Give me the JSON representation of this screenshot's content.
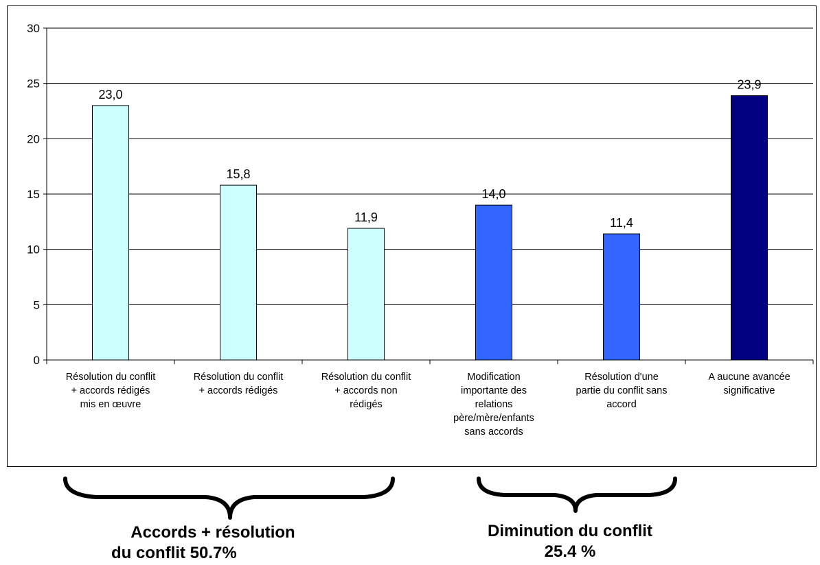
{
  "chart_data": {
    "type": "bar",
    "categories": [
      [
        "Résolution du conflit",
        "+ accords rédigés",
        "mis en œuvre"
      ],
      [
        "Résolution du conflit",
        "+ accords rédigés"
      ],
      [
        "Résolution du conflit",
        "+  accords non",
        "rédigés"
      ],
      [
        "Modification",
        "importante des",
        "relations",
        "père/mère/enfants",
        "sans accords"
      ],
      [
        "Résolution d'une",
        "partie du conflit  sans",
        "accord"
      ],
      [
        "A aucune avancée",
        "significative"
      ]
    ],
    "values": [
      23.0,
      15.8,
      11.9,
      14.0,
      11.4,
      23.9
    ],
    "value_labels": [
      "23,0",
      "15,8",
      "11,9",
      "14,0",
      "11,4",
      "23,9"
    ],
    "bar_colors": [
      "#ccffff",
      "#ccffff",
      "#ccffff",
      "#3366ff",
      "#3366ff",
      "#000080"
    ],
    "ylim": [
      0,
      30
    ],
    "yticks": [
      0,
      5,
      10,
      15,
      20,
      25,
      30
    ],
    "grid": true,
    "title": "",
    "xlabel": "",
    "ylabel": ""
  },
  "groups": [
    {
      "label_line1": "Accords + résolution",
      "label_line2": "du conflit   50.7%"
    },
    {
      "label_line1": "Diminution du conflit",
      "label_line2": "25.4 %"
    }
  ]
}
